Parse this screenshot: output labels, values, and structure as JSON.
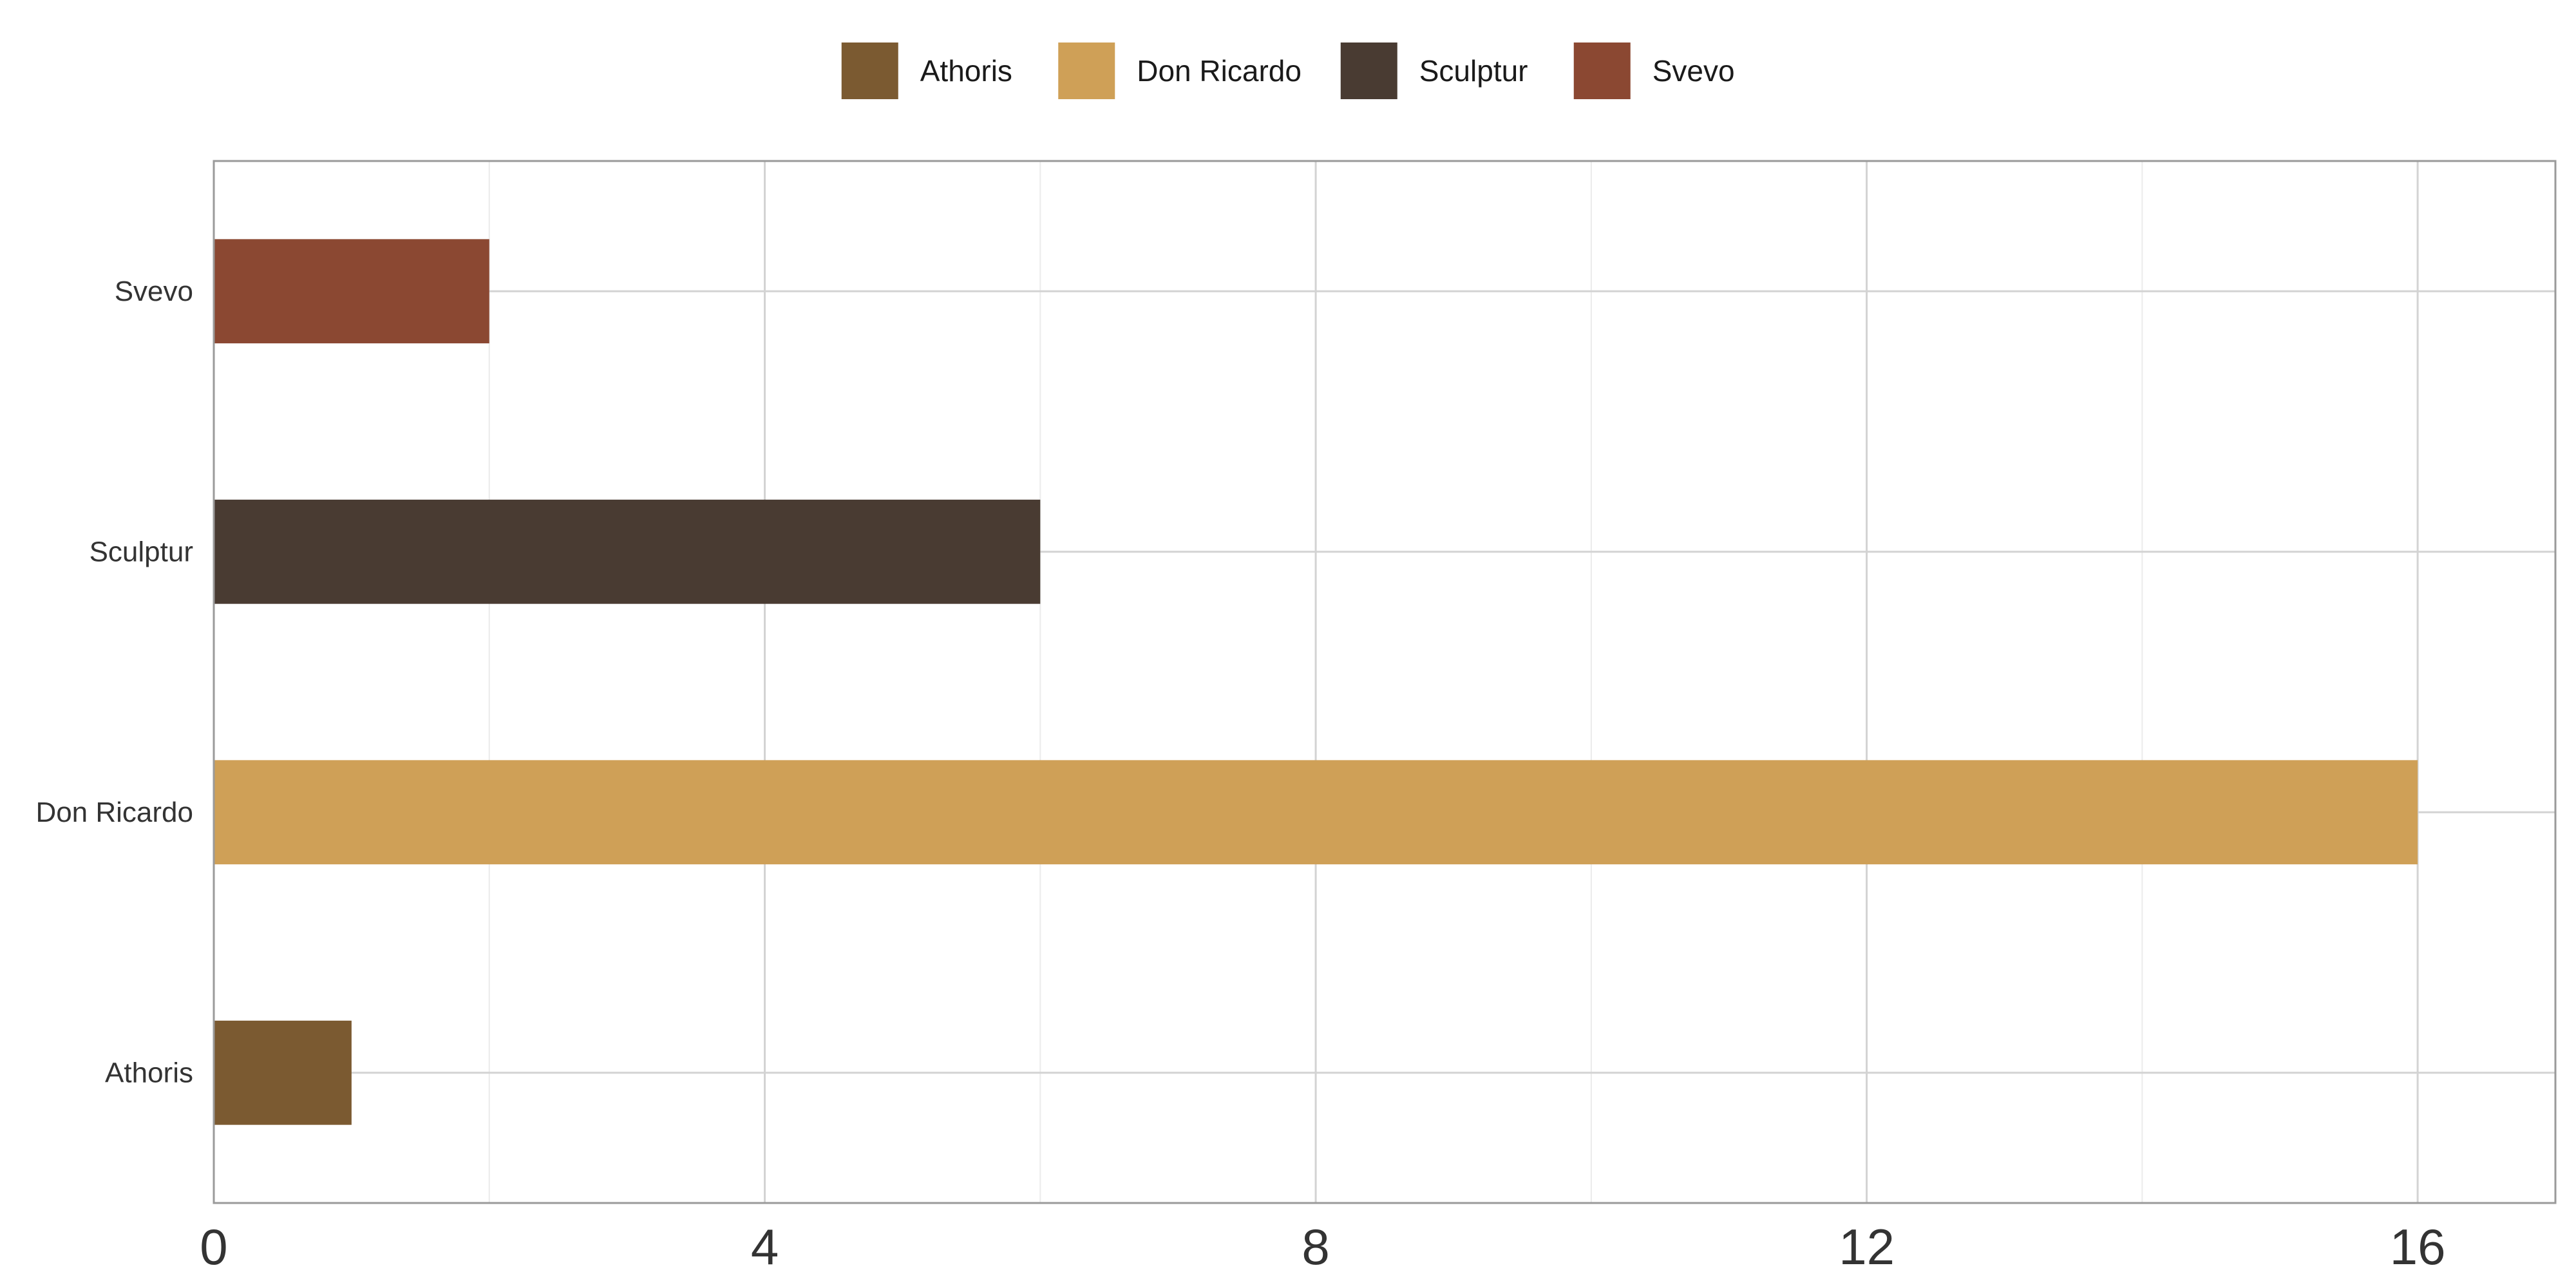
{
  "chart_data": {
    "type": "bar",
    "orientation": "horizontal",
    "categories": [
      "Athoris",
      "Don Ricardo",
      "Sculptur",
      "Svevo"
    ],
    "values": [
      1,
      16,
      6,
      2
    ],
    "colors": [
      "#7b5a31",
      "#cfa057",
      "#493b32",
      "#8b4832"
    ],
    "xlim": [
      0,
      17
    ],
    "xticks": [
      0,
      4,
      8,
      12,
      16
    ],
    "xticks_labels": [
      "0",
      "4",
      "8",
      "12",
      "16"
    ],
    "grid": true,
    "legend": {
      "position": "top",
      "entries": [
        "Athoris",
        "Don Ricardo",
        "Sculptur",
        "Svevo"
      ]
    },
    "title": "",
    "xlabel": "",
    "ylabel": ""
  }
}
